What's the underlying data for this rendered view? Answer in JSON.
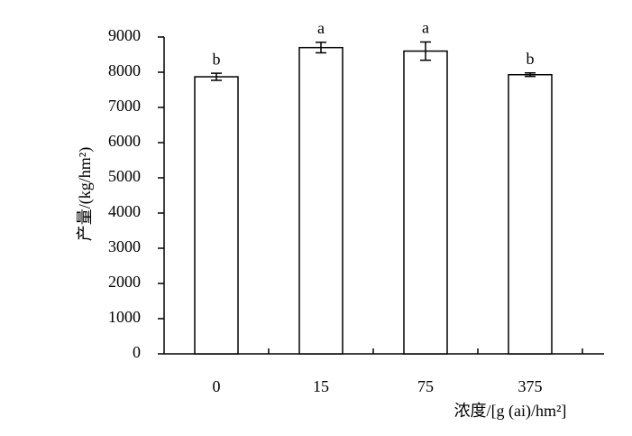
{
  "chart_data": {
    "type": "bar",
    "categories": [
      "0",
      "15",
      "75",
      "375"
    ],
    "values": [
      7870,
      8700,
      8600,
      7930
    ],
    "errors": [
      100,
      150,
      260,
      50
    ],
    "significance": [
      "b",
      "a",
      "a",
      "b"
    ],
    "color": "#ffffff",
    "ylim": [
      0,
      9000
    ],
    "yticks": [
      0,
      1000,
      2000,
      3000,
      4000,
      5000,
      6000,
      7000,
      8000,
      9000
    ],
    "y_label": "产量/(kg/hm²)",
    "x_label": "浓度/[g (ai)/hm²]",
    "grid": false
  }
}
